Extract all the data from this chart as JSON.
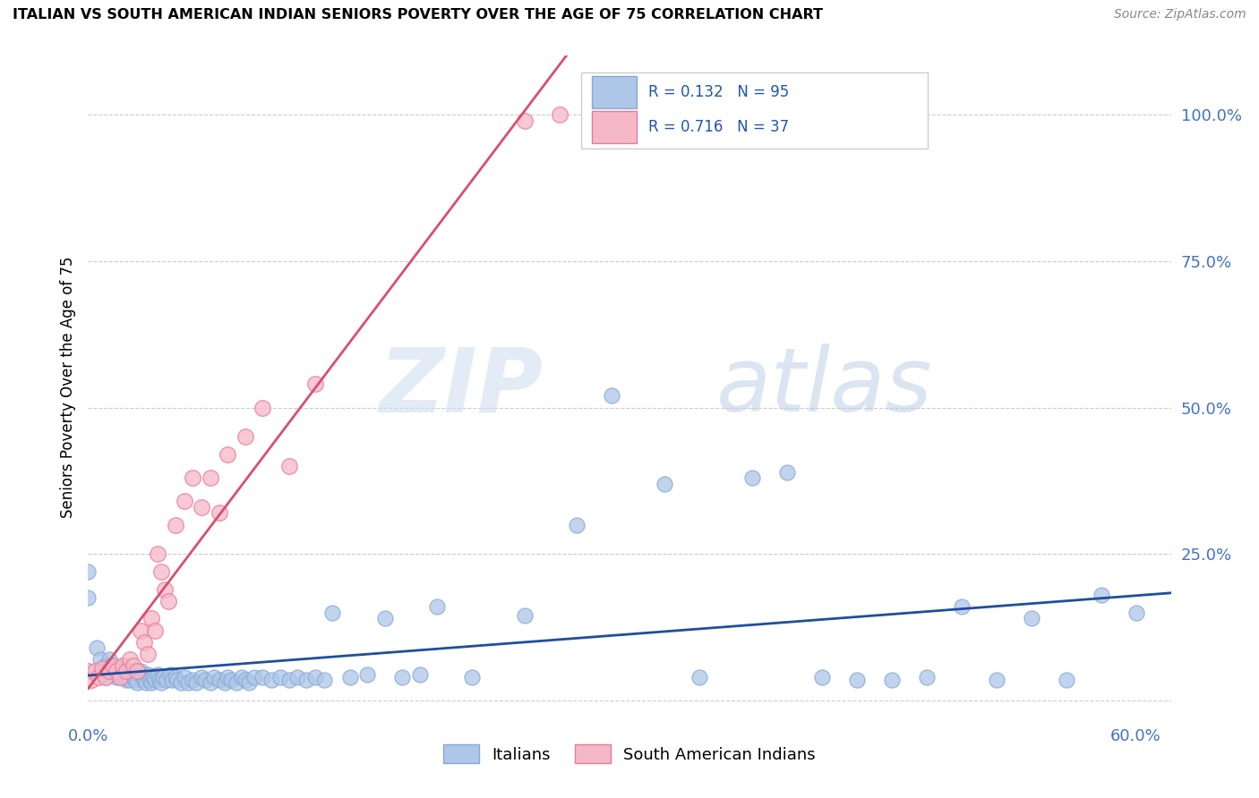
{
  "title": "ITALIAN VS SOUTH AMERICAN INDIAN SENIORS POVERTY OVER THE AGE OF 75 CORRELATION CHART",
  "source": "Source: ZipAtlas.com",
  "ylabel": "Seniors Poverty Over the Age of 75",
  "xlim": [
    0.0,
    0.62
  ],
  "ylim": [
    -0.03,
    1.1
  ],
  "xticks": [
    0.0,
    0.1,
    0.2,
    0.3,
    0.4,
    0.5,
    0.6
  ],
  "xtick_labels": [
    "0.0%",
    "",
    "",
    "",
    "",
    "",
    "60.0%"
  ],
  "ytick_positions": [
    0.0,
    0.25,
    0.5,
    0.75,
    1.0
  ],
  "ytick_labels": [
    "",
    "25.0%",
    "50.0%",
    "75.0%",
    "100.0%"
  ],
  "watermark_zip": "ZIP",
  "watermark_atlas": "atlas",
  "italian_color": "#aec6e8",
  "italian_edge": "#85aad4",
  "south_american_color": "#f5b8c8",
  "south_american_edge": "#e87a9a",
  "trend_italian_color": "#1f4e9e",
  "trend_south_american_color": "#d94f6e",
  "R_italian": 0.132,
  "N_italian": 95,
  "R_south_american": 0.716,
  "N_south_american": 37,
  "legend_label_italian": "Italians",
  "legend_label_south_american": "South American Indians",
  "italian_x": [
    0.0,
    0.0,
    0.005,
    0.007,
    0.01,
    0.01,
    0.01,
    0.012,
    0.013,
    0.014,
    0.015,
    0.015,
    0.016,
    0.017,
    0.018,
    0.019,
    0.02,
    0.02,
    0.021,
    0.022,
    0.023,
    0.024,
    0.025,
    0.026,
    0.027,
    0.028,
    0.03,
    0.031,
    0.032,
    0.033,
    0.034,
    0.035,
    0.036,
    0.037,
    0.038,
    0.04,
    0.041,
    0.042,
    0.043,
    0.045,
    0.047,
    0.048,
    0.05,
    0.051,
    0.053,
    0.055,
    0.057,
    0.06,
    0.062,
    0.065,
    0.067,
    0.07,
    0.072,
    0.075,
    0.078,
    0.08,
    0.082,
    0.085,
    0.088,
    0.09,
    0.092,
    0.095,
    0.1,
    0.105,
    0.11,
    0.115,
    0.12,
    0.125,
    0.13,
    0.135,
    0.14,
    0.15,
    0.16,
    0.17,
    0.18,
    0.19,
    0.2,
    0.22,
    0.25,
    0.28,
    0.3,
    0.33,
    0.35,
    0.38,
    0.4,
    0.42,
    0.44,
    0.46,
    0.48,
    0.5,
    0.52,
    0.54,
    0.56,
    0.58,
    0.6
  ],
  "italian_y": [
    0.22,
    0.175,
    0.09,
    0.07,
    0.06,
    0.05,
    0.04,
    0.07,
    0.06,
    0.055,
    0.05,
    0.045,
    0.04,
    0.055,
    0.05,
    0.04,
    0.06,
    0.05,
    0.04,
    0.035,
    0.045,
    0.035,
    0.05,
    0.04,
    0.035,
    0.03,
    0.05,
    0.04,
    0.035,
    0.03,
    0.045,
    0.035,
    0.03,
    0.04,
    0.035,
    0.045,
    0.035,
    0.03,
    0.04,
    0.035,
    0.045,
    0.035,
    0.04,
    0.035,
    0.03,
    0.04,
    0.03,
    0.035,
    0.03,
    0.04,
    0.035,
    0.03,
    0.04,
    0.035,
    0.03,
    0.04,
    0.035,
    0.03,
    0.04,
    0.035,
    0.03,
    0.04,
    0.04,
    0.035,
    0.04,
    0.035,
    0.04,
    0.035,
    0.04,
    0.035,
    0.15,
    0.04,
    0.045,
    0.14,
    0.04,
    0.045,
    0.16,
    0.04,
    0.145,
    0.3,
    0.52,
    0.37,
    0.04,
    0.38,
    0.39,
    0.04,
    0.035,
    0.035,
    0.04,
    0.16,
    0.035,
    0.14,
    0.035,
    0.18,
    0.15
  ],
  "south_american_x": [
    0.0,
    0.002,
    0.004,
    0.006,
    0.008,
    0.01,
    0.012,
    0.014,
    0.016,
    0.018,
    0.02,
    0.022,
    0.024,
    0.026,
    0.028,
    0.03,
    0.032,
    0.034,
    0.036,
    0.038,
    0.04,
    0.042,
    0.044,
    0.046,
    0.05,
    0.055,
    0.06,
    0.065,
    0.07,
    0.075,
    0.08,
    0.09,
    0.1,
    0.115,
    0.13,
    0.25,
    0.27
  ],
  "south_american_y": [
    0.05,
    0.035,
    0.05,
    0.04,
    0.055,
    0.04,
    0.05,
    0.06,
    0.05,
    0.04,
    0.06,
    0.05,
    0.07,
    0.06,
    0.05,
    0.12,
    0.1,
    0.08,
    0.14,
    0.12,
    0.25,
    0.22,
    0.19,
    0.17,
    0.3,
    0.34,
    0.38,
    0.33,
    0.38,
    0.32,
    0.42,
    0.45,
    0.5,
    0.4,
    0.54,
    0.99,
    1.0
  ]
}
